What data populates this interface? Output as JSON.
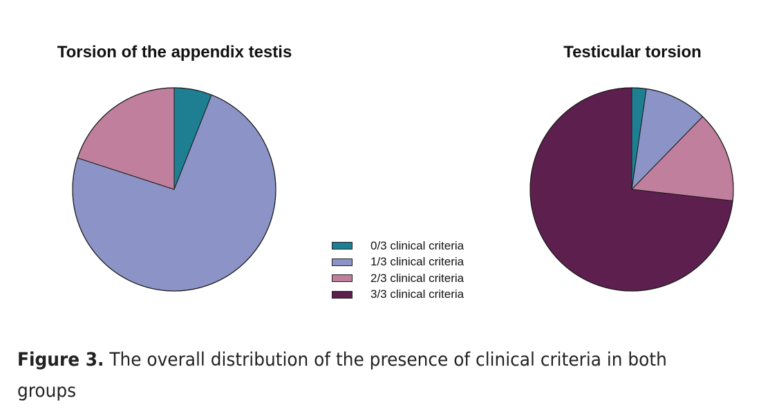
{
  "figure": {
    "caption_label": "Figure 3.",
    "caption_text": " The overall distribution of the presence of clinical criteria in both groups"
  },
  "legend": {
    "items": [
      {
        "label": "0/3 clinical criteria",
        "color": "#1e7f93"
      },
      {
        "label": "1/3 clinical criteria",
        "color": "#8c93c6"
      },
      {
        "label": "2/3 clinical criteria",
        "color": "#c07f9c"
      },
      {
        "label": "3/3 clinical criteria",
        "color": "#5d1f4e"
      }
    ]
  },
  "chart_data": [
    {
      "type": "pie",
      "title": "Torsion of the appendix testis",
      "categories": [
        "0/3 clinical criteria",
        "1/3 clinical criteria",
        "2/3 clinical criteria",
        "3/3 clinical criteria"
      ],
      "values": [
        6,
        74,
        20,
        0
      ],
      "unit": "%",
      "start_angle": "top, clockwise"
    },
    {
      "type": "pie",
      "title": "Testicular torsion",
      "categories": [
        "0/3 clinical criteria",
        "1/3 clinical criteria",
        "2/3 clinical criteria",
        "3/3 clinical criteria"
      ],
      "values": [
        2.3,
        10,
        14.5,
        73.2
      ],
      "unit": "%",
      "start_angle": "top, clockwise"
    }
  ]
}
